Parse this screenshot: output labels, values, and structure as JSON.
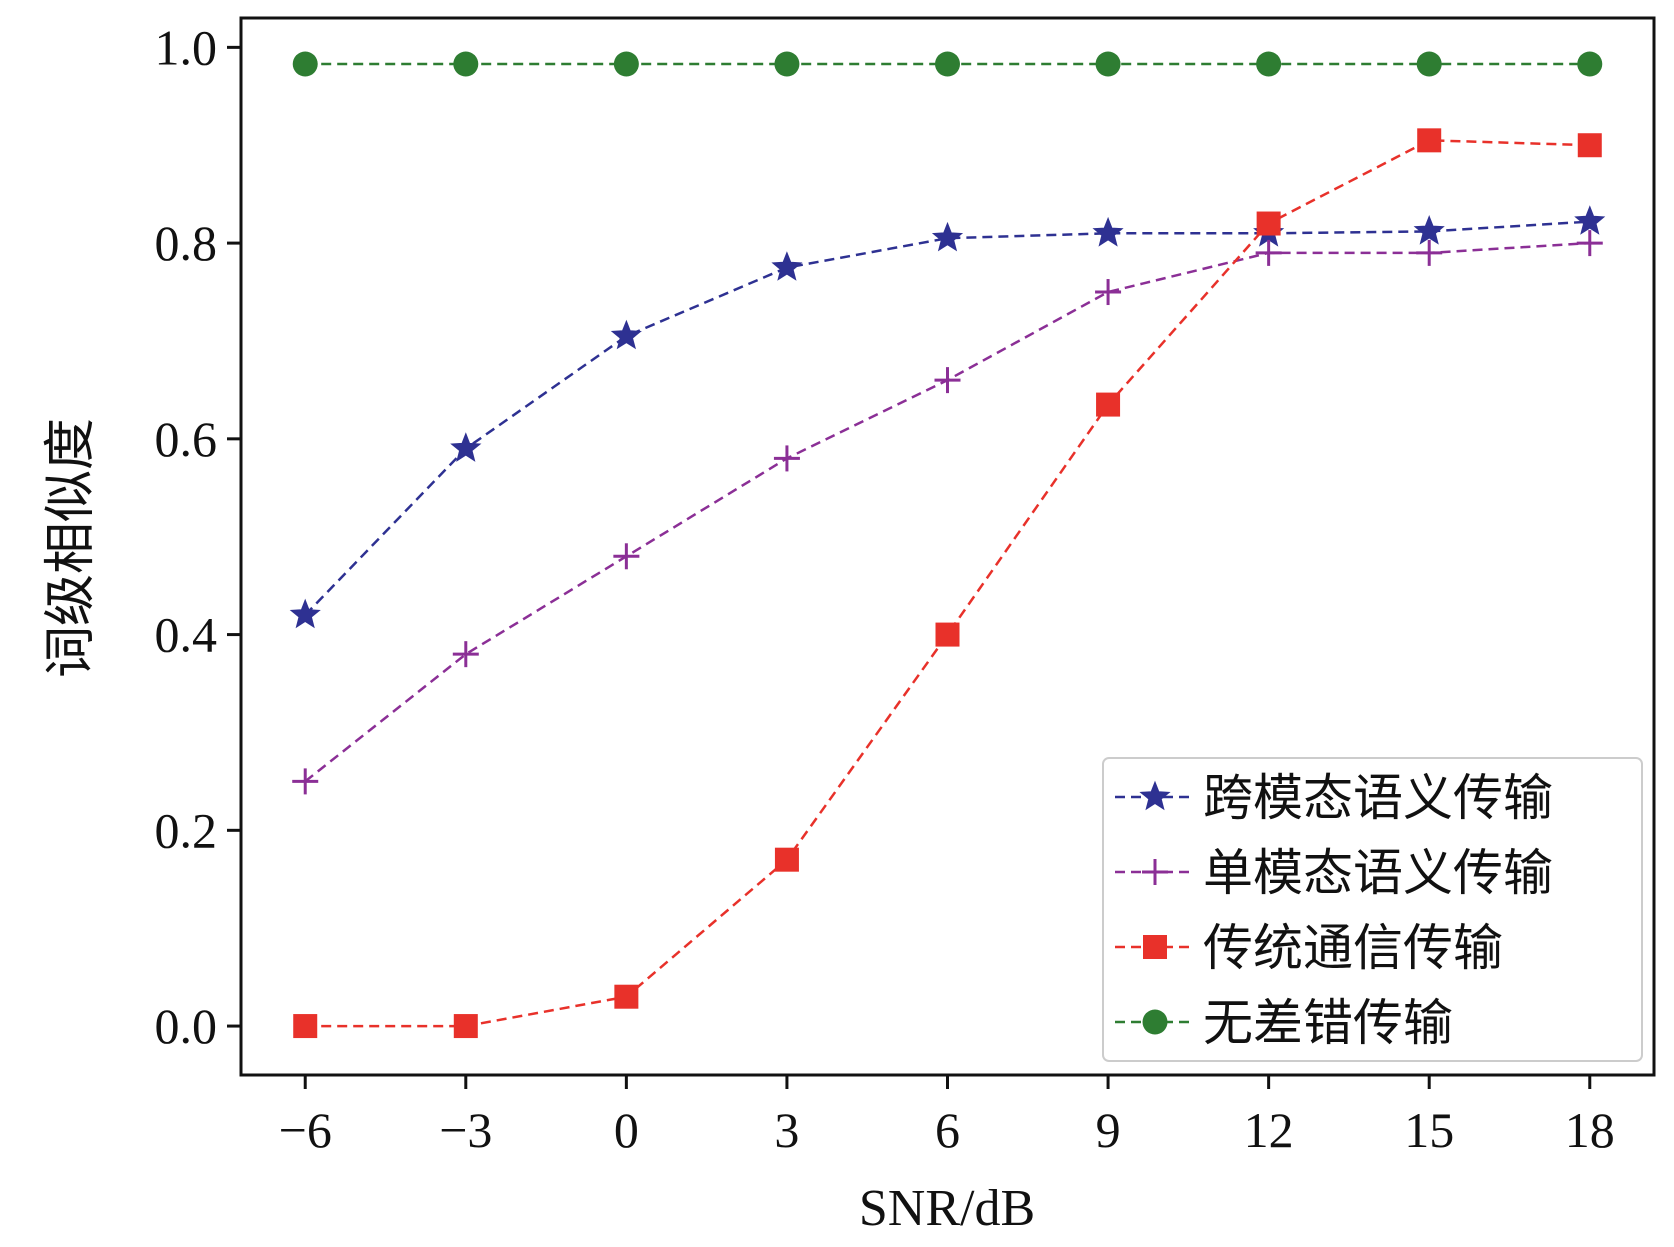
{
  "chart_data": {
    "type": "line",
    "title": "",
    "xlabel": "SNR/dB",
    "ylabel": "词级相似度",
    "x": [
      -6,
      -3,
      0,
      3,
      6,
      9,
      12,
      15,
      18
    ],
    "x_tick_labels": [
      "−6",
      "−3",
      "0",
      "3",
      "6",
      "9",
      "12",
      "15",
      "18"
    ],
    "y_ticks": [
      0.0,
      0.2,
      0.4,
      0.6,
      0.8,
      1.0
    ],
    "y_tick_labels": [
      "0.0",
      "0.2",
      "0.4",
      "0.6",
      "0.8",
      "1.0"
    ],
    "xlim": [
      -7.2,
      19.2
    ],
    "ylim": [
      -0.05,
      1.03
    ],
    "grid": false,
    "legend_position": "lower-right",
    "series": [
      {
        "name": "跨模态语义传输",
        "color": "#2e3192",
        "marker": "star",
        "values": [
          0.42,
          0.59,
          0.705,
          0.775,
          0.805,
          0.81,
          0.81,
          0.812,
          0.822
        ]
      },
      {
        "name": "单模态语义传输",
        "color": "#8b2f96",
        "marker": "plus",
        "values": [
          0.25,
          0.38,
          0.48,
          0.58,
          0.66,
          0.75,
          0.79,
          0.79,
          0.8
        ]
      },
      {
        "name": "传统通信传输",
        "color": "#e8312a",
        "marker": "square",
        "values": [
          0.0,
          0.0,
          0.03,
          0.17,
          0.4,
          0.635,
          0.82,
          0.905,
          0.9
        ]
      },
      {
        "name": "无差错传输",
        "color": "#2e7d32",
        "marker": "circle",
        "values": [
          0.983,
          0.983,
          0.983,
          0.983,
          0.983,
          0.983,
          0.983,
          0.983,
          0.983
        ]
      }
    ]
  }
}
